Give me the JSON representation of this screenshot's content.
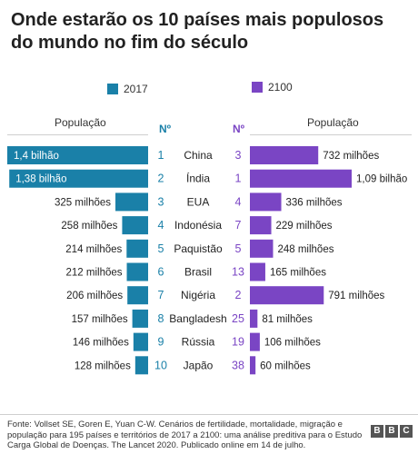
{
  "title": "Onde estarão os 10 países mais populosos do mundo no fim do século",
  "legend": [
    {
      "label": "2017",
      "color": "#1a80a8"
    },
    {
      "label": "2100",
      "color": "#7a45c4"
    }
  ],
  "headers": {
    "left": "População",
    "left_rank": "Nº",
    "right_rank": "Nº",
    "right": "População"
  },
  "colors": {
    "rank_2017": "#1a80a8",
    "rank_2100": "#7a45c4",
    "bar_2017": "#1a80a8",
    "bar_2100": "#7a45c4"
  },
  "chart_data": {
    "type": "bar",
    "unit": "milhões",
    "categories": [
      "China",
      "Índia",
      "EUA",
      "Indonésia",
      "Paquistão",
      "Brasil",
      "Nigéria",
      "Bangladesh",
      "Rússia",
      "Japão"
    ],
    "series": [
      {
        "name": "2017",
        "values": [
          1400,
          1380,
          325,
          258,
          214,
          212,
          206,
          157,
          146,
          128
        ],
        "labels": [
          "1,4 bilhão",
          "1,38 bilhão",
          "325 milhões",
          "258 milhões",
          "214 milhões",
          "212 milhões",
          "206 milhões",
          "157 milhões",
          "146 milhões",
          "128 milhões"
        ],
        "ranks": [
          "1",
          "2",
          "3",
          "4",
          "5",
          "6",
          "7",
          "8",
          "9",
          "10"
        ]
      },
      {
        "name": "2100",
        "values": [
          732,
          1090,
          336,
          229,
          248,
          165,
          791,
          81,
          106,
          60
        ],
        "labels": [
          "732 milhões",
          "1,09 bilhão",
          "336 milhões",
          "229 milhões",
          "248 milhões",
          "165 milhões",
          "791 milhões",
          "81 milhões",
          "106 milhões",
          "60 milhões"
        ],
        "ranks": [
          "3",
          "1",
          "4",
          "7",
          "5",
          "13",
          "2",
          "25",
          "19",
          "38"
        ]
      }
    ]
  },
  "source": "Fonte: Vollset SE, Goren E, Yuan C-W. Cenários de fertilidade, mortalidade, migração e população para 195 países e territórios de 2017 a 2100: uma análise preditiva para o Estudo Carga Global de Doenças. The Lancet 2020. Publicado online em 14 de julho.",
  "logo": [
    "B",
    "B",
    "C"
  ]
}
